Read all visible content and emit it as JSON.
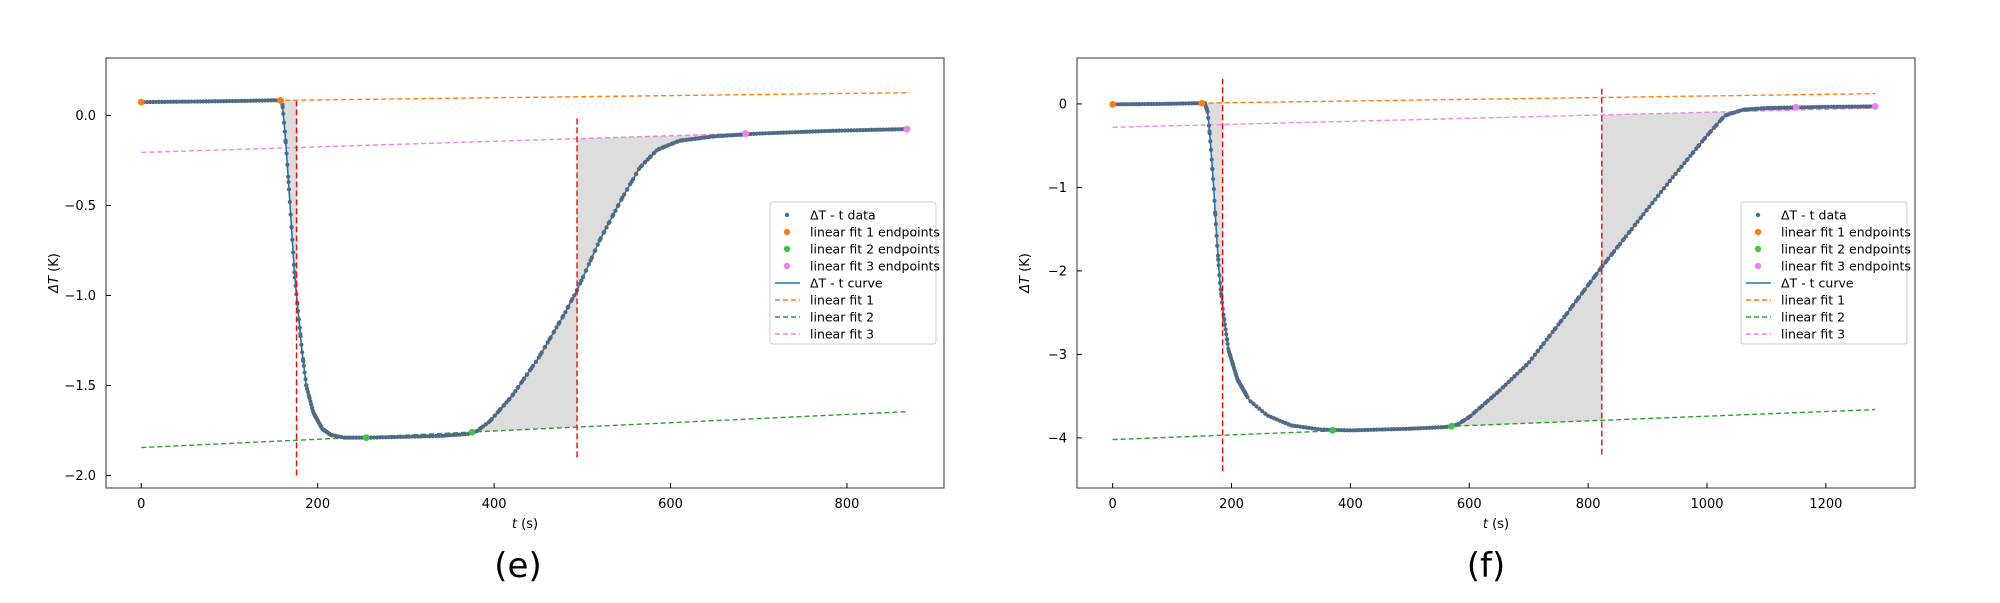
{
  "chart_data": [
    {
      "type": "line",
      "panel_label": "(e)",
      "xlabel_var": "t",
      "xlabel_unit": "(s)",
      "ylabel_main": "ΔT",
      "ylabel_unit": "(K)",
      "xlim": [
        -40,
        910
      ],
      "ylim": [
        -2.07,
        0.32
      ],
      "xticks": [
        0,
        200,
        400,
        600,
        800
      ],
      "xtick_labels": [
        "0",
        "200",
        "400",
        "600",
        "800"
      ],
      "yticks": [
        0.0,
        -0.5,
        -1.0,
        -1.5,
        -2.0
      ],
      "ytick_labels": [
        "0.0",
        "−0.5",
        "−1.0",
        "−1.5",
        "−2.0"
      ],
      "grid": false,
      "legend_position": "center-right",
      "t_end": 868,
      "curve": [
        [
          0,
          0.075
        ],
        [
          60,
          0.078
        ],
        [
          120,
          0.082
        ],
        [
          150,
          0.085
        ],
        [
          158,
          0.084
        ],
        [
          160,
          0.06
        ],
        [
          163,
          -0.1
        ],
        [
          166,
          -0.3
        ],
        [
          170,
          -0.6
        ],
        [
          174,
          -0.9
        ],
        [
          177,
          -1.05
        ],
        [
          182,
          -1.3
        ],
        [
          187,
          -1.5
        ],
        [
          195,
          -1.65
        ],
        [
          205,
          -1.74
        ],
        [
          215,
          -1.775
        ],
        [
          230,
          -1.79
        ],
        [
          260,
          -1.79
        ],
        [
          300,
          -1.785
        ],
        [
          340,
          -1.78
        ],
        [
          370,
          -1.77
        ],
        [
          380,
          -1.755
        ],
        [
          395,
          -1.7
        ],
        [
          420,
          -1.56
        ],
        [
          450,
          -1.35
        ],
        [
          480,
          -1.1
        ],
        [
          495,
          -0.96
        ],
        [
          520,
          -0.69
        ],
        [
          545,
          -0.46
        ],
        [
          565,
          -0.29
        ],
        [
          585,
          -0.19
        ],
        [
          610,
          -0.14
        ],
        [
          650,
          -0.115
        ],
        [
          700,
          -0.1
        ],
        [
          780,
          -0.085
        ],
        [
          868,
          -0.075
        ]
      ],
      "fit1": {
        "slope": 6e-05,
        "intercept": 0.075,
        "t_range": [
          0,
          868
        ]
      },
      "fit2": {
        "slope": 0.00023,
        "intercept": -1.845,
        "t_range": [
          0,
          868
        ]
      },
      "fit3": {
        "slope": 0.000155,
        "intercept": -0.205,
        "t_range": [
          0,
          868
        ]
      },
      "vlines": [
        {
          "t": 176,
          "y": [
            -2.0,
            0.08
          ]
        },
        {
          "t": 494,
          "y": [
            -1.9,
            0.0
          ]
        }
      ],
      "endpoints1": [
        [
          0,
          0.075
        ],
        [
          158,
          0.084
        ]
      ],
      "endpoints2": [
        [
          255,
          -1.79
        ],
        [
          375,
          -1.76
        ]
      ],
      "endpoints3": [
        [
          685,
          -0.1
        ],
        [
          868,
          -0.075
        ]
      ],
      "legend": [
        "ΔT - t data",
        "linear fit 1 endpoints",
        "linear fit 2 endpoints",
        "linear fit 3 endpoints",
        "ΔT - t curve",
        "linear fit 1",
        "linear fit 2",
        "linear fit 3"
      ]
    },
    {
      "type": "line",
      "panel_label": "(f)",
      "xlabel_var": "t",
      "xlabel_unit": "(s)",
      "ylabel_main": "ΔT",
      "ylabel_unit": "(K)",
      "xlim": [
        -60,
        1350
      ],
      "ylim": [
        -4.6,
        0.55
      ],
      "xticks": [
        0,
        200,
        400,
        600,
        800,
        1000,
        1200
      ],
      "xtick_labels": [
        "0",
        "200",
        "400",
        "600",
        "800",
        "1000",
        "1200"
      ],
      "yticks": [
        0,
        -1,
        -2,
        -3,
        -4
      ],
      "ytick_labels": [
        "0",
        "−1",
        "−2",
        "−3",
        "−4"
      ],
      "grid": false,
      "legend_position": "center-right",
      "t_end": 1283,
      "curve": [
        [
          0,
          -0.005
        ],
        [
          80,
          0.0
        ],
        [
          140,
          0.008
        ],
        [
          155,
          0.01
        ],
        [
          160,
          -0.1
        ],
        [
          165,
          -0.5
        ],
        [
          170,
          -1.0
        ],
        [
          175,
          -1.6
        ],
        [
          180,
          -2.1
        ],
        [
          186,
          -2.5
        ],
        [
          195,
          -2.95
        ],
        [
          210,
          -3.3
        ],
        [
          230,
          -3.55
        ],
        [
          260,
          -3.73
        ],
        [
          300,
          -3.85
        ],
        [
          350,
          -3.9
        ],
        [
          400,
          -3.91
        ],
        [
          450,
          -3.9
        ],
        [
          500,
          -3.89
        ],
        [
          560,
          -3.87
        ],
        [
          580,
          -3.84
        ],
        [
          600,
          -3.75
        ],
        [
          650,
          -3.44
        ],
        [
          700,
          -3.1
        ],
        [
          760,
          -2.55
        ],
        [
          820,
          -1.98
        ],
        [
          880,
          -1.44
        ],
        [
          940,
          -0.9
        ],
        [
          1000,
          -0.38
        ],
        [
          1030,
          -0.14
        ],
        [
          1060,
          -0.07
        ],
        [
          1100,
          -0.05
        ],
        [
          1200,
          -0.035
        ],
        [
          1283,
          -0.03
        ]
      ],
      "fit1": {
        "slope": 0.0001,
        "intercept": -0.005,
        "t_range": [
          0,
          1283
        ]
      },
      "fit2": {
        "slope": 0.00028,
        "intercept": -4.02,
        "t_range": [
          0,
          1283
        ]
      },
      "fit3": {
        "slope": 0.00018,
        "intercept": -0.28,
        "t_range": [
          0,
          1283
        ]
      },
      "vlines": [
        {
          "t": 185,
          "y": [
            -4.4,
            0.3
          ]
        },
        {
          "t": 823,
          "y": [
            -4.2,
            0.2
          ]
        }
      ],
      "endpoints1": [
        [
          0,
          -0.005
        ],
        [
          150,
          0.008
        ]
      ],
      "endpoints2": [
        [
          370,
          -3.91
        ],
        [
          570,
          -3.86
        ]
      ],
      "endpoints3": [
        [
          1150,
          -0.04
        ],
        [
          1283,
          -0.03
        ]
      ],
      "legend": [
        "ΔT - t data",
        "linear fit 1 endpoints",
        "linear fit 2 endpoints",
        "linear fit 3 endpoints",
        "ΔT - t curve",
        "linear fit 1",
        "linear fit 2",
        "linear fit 3"
      ]
    }
  ],
  "colors": {
    "data": "#4f6a86",
    "curve": "#1f77b4",
    "fit1": "#ff7f0e",
    "fit2": "#2ca02c",
    "fit2_marker": "#3cc83c",
    "fit3": "#ee82ee",
    "vline": "#ff0000",
    "shade": "#dddddd"
  }
}
